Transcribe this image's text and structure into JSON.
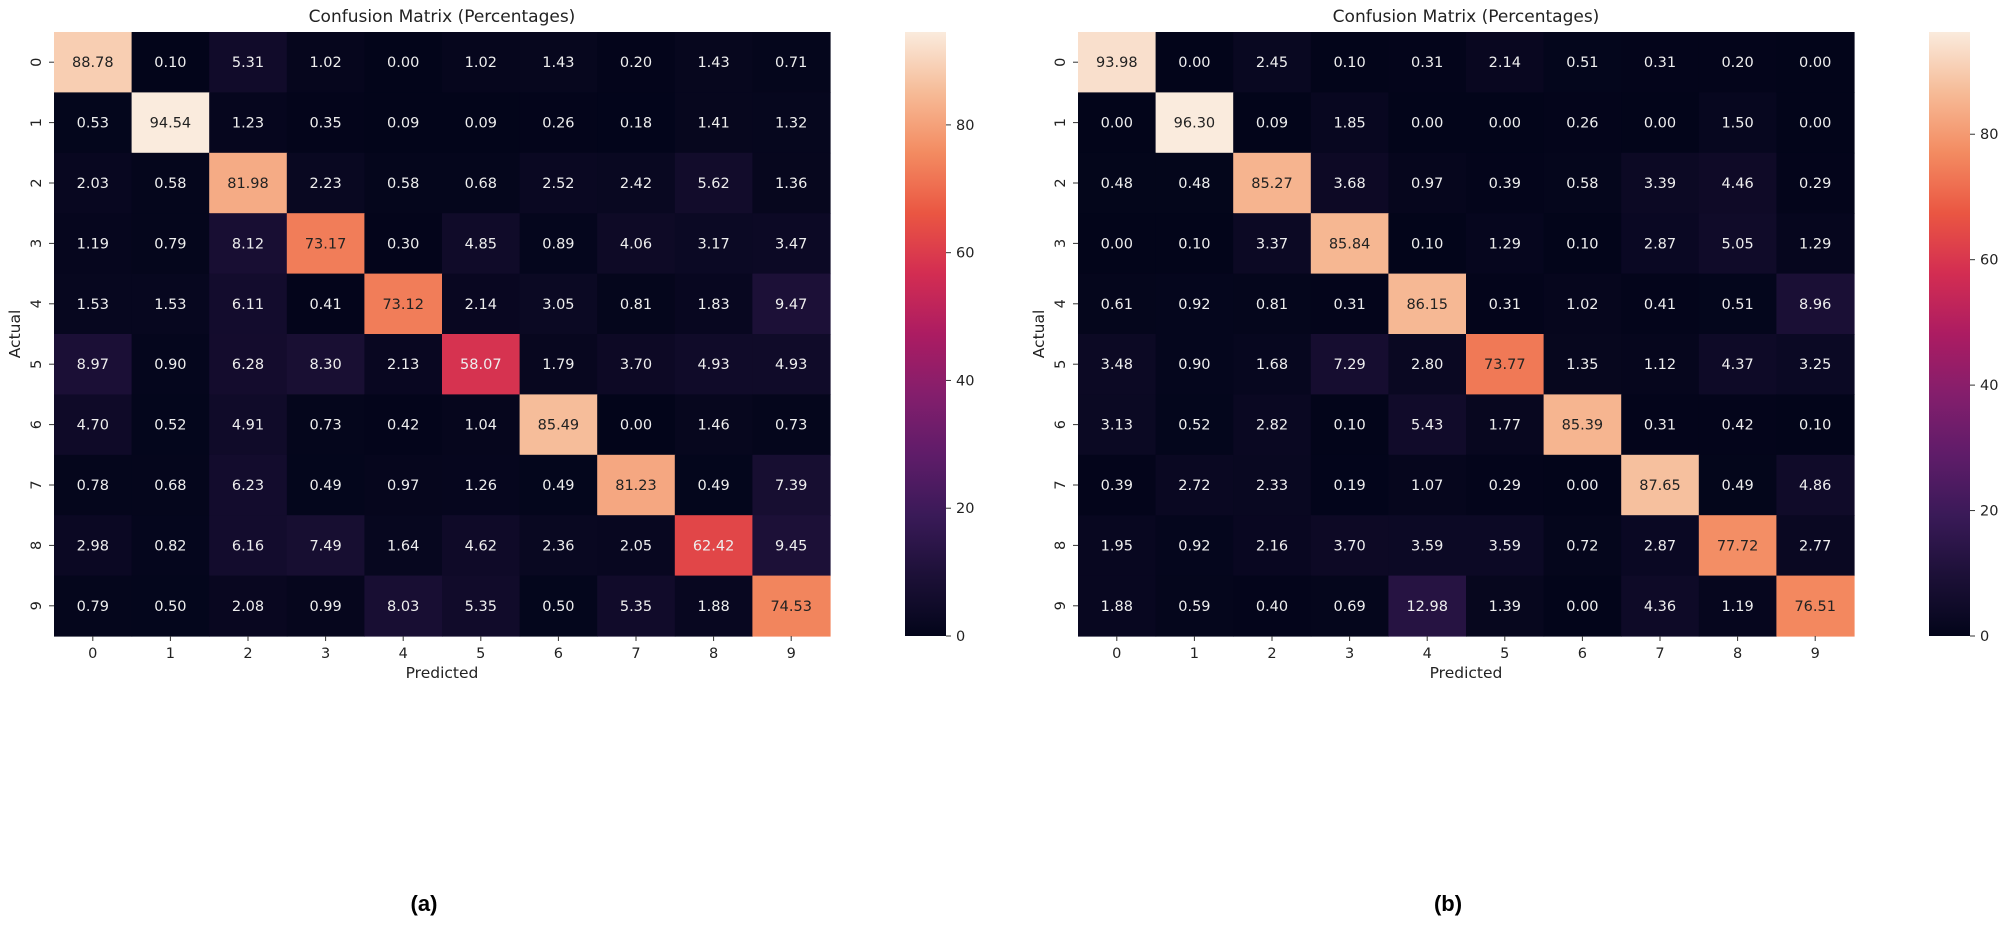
{
  "chart_data": [
    {
      "type": "heatmap",
      "title": "Confusion Matrix (Percentages)",
      "xlabel": "Predicted",
      "ylabel": "Actual",
      "caption": "(a)",
      "x_ticks": [
        "0",
        "1",
        "2",
        "3",
        "4",
        "5",
        "6",
        "7",
        "8",
        "9"
      ],
      "y_ticks": [
        "0",
        "1",
        "2",
        "3",
        "4",
        "5",
        "6",
        "7",
        "8",
        "9"
      ],
      "colorbar_ticks": [
        0,
        20,
        40,
        60,
        80
      ],
      "value_range": [
        0,
        94.54
      ],
      "values": [
        [
          88.78,
          0.1,
          5.31,
          1.02,
          0.0,
          1.02,
          1.43,
          0.2,
          1.43,
          0.71
        ],
        [
          0.53,
          94.54,
          1.23,
          0.35,
          0.09,
          0.09,
          0.26,
          0.18,
          1.41,
          1.32
        ],
        [
          2.03,
          0.58,
          81.98,
          2.23,
          0.58,
          0.68,
          2.52,
          2.42,
          5.62,
          1.36
        ],
        [
          1.19,
          0.79,
          8.12,
          73.17,
          0.3,
          4.85,
          0.89,
          4.06,
          3.17,
          3.47
        ],
        [
          1.53,
          1.53,
          6.11,
          0.41,
          73.12,
          2.14,
          3.05,
          0.81,
          1.83,
          9.47
        ],
        [
          8.97,
          0.9,
          6.28,
          8.3,
          2.13,
          58.07,
          1.79,
          3.7,
          4.93,
          4.93
        ],
        [
          4.7,
          0.52,
          4.91,
          0.73,
          0.42,
          1.04,
          85.49,
          0.0,
          1.46,
          0.73
        ],
        [
          0.78,
          0.68,
          6.23,
          0.49,
          0.97,
          1.26,
          0.49,
          81.23,
          0.49,
          7.39
        ],
        [
          2.98,
          0.82,
          6.16,
          7.49,
          1.64,
          4.62,
          2.36,
          2.05,
          62.42,
          9.45
        ],
        [
          0.79,
          0.5,
          2.08,
          0.99,
          8.03,
          5.35,
          0.5,
          5.35,
          1.88,
          74.53
        ]
      ]
    },
    {
      "type": "heatmap",
      "title": "Confusion Matrix (Percentages)",
      "xlabel": "Predicted",
      "ylabel": "Actual",
      "caption": "(b)",
      "x_ticks": [
        "0",
        "1",
        "2",
        "3",
        "4",
        "5",
        "6",
        "7",
        "8",
        "9"
      ],
      "y_ticks": [
        "0",
        "1",
        "2",
        "3",
        "4",
        "5",
        "6",
        "7",
        "8",
        "9"
      ],
      "colorbar_ticks": [
        0,
        20,
        40,
        60,
        80
      ],
      "value_range": [
        0,
        96.3
      ],
      "values": [
        [
          93.98,
          0.0,
          2.45,
          0.1,
          0.31,
          2.14,
          0.51,
          0.31,
          0.2,
          0.0
        ],
        [
          0.0,
          96.3,
          0.09,
          1.85,
          0.0,
          0.0,
          0.26,
          0.0,
          1.5,
          0.0
        ],
        [
          0.48,
          0.48,
          85.27,
          3.68,
          0.97,
          0.39,
          0.58,
          3.39,
          4.46,
          0.29
        ],
        [
          0.0,
          0.1,
          3.37,
          85.84,
          0.1,
          1.29,
          0.1,
          2.87,
          5.05,
          1.29
        ],
        [
          0.61,
          0.92,
          0.81,
          0.31,
          86.15,
          0.31,
          1.02,
          0.41,
          0.51,
          8.96
        ],
        [
          3.48,
          0.9,
          1.68,
          7.29,
          2.8,
          73.77,
          1.35,
          1.12,
          4.37,
          3.25
        ],
        [
          3.13,
          0.52,
          2.82,
          0.1,
          5.43,
          1.77,
          85.39,
          0.31,
          0.42,
          0.1
        ],
        [
          0.39,
          2.72,
          2.33,
          0.19,
          1.07,
          0.29,
          0.0,
          87.65,
          0.49,
          4.86
        ],
        [
          1.95,
          0.92,
          2.16,
          3.7,
          3.59,
          3.59,
          0.72,
          2.87,
          77.72,
          2.77
        ],
        [
          1.88,
          0.59,
          0.4,
          0.69,
          12.98,
          1.39,
          0.0,
          4.36,
          1.19,
          76.51
        ]
      ]
    }
  ]
}
